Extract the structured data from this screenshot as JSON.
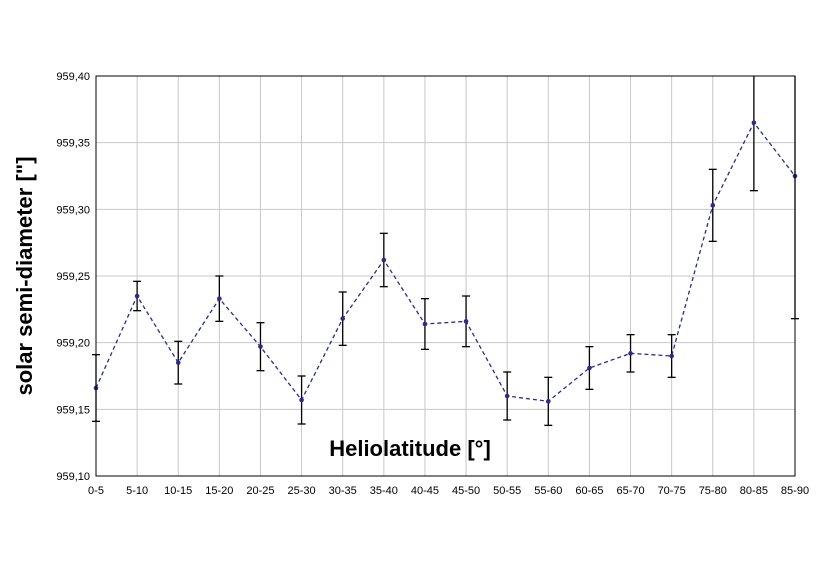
{
  "chart_data": {
    "type": "line",
    "title": "",
    "xlabel": "Heliolatitude [°]",
    "ylabel": "solar semi-diameter [\"]",
    "categories": [
      "0-5",
      "5-10",
      "10-15",
      "15-20",
      "20-25",
      "25-30",
      "30-35",
      "35-40",
      "40-45",
      "45-50",
      "50-55",
      "55-60",
      "60-65",
      "65-70",
      "70-75",
      "75-80",
      "80-85",
      "85-90"
    ],
    "series": [
      {
        "values": [
          959.166,
          959.235,
          959.185,
          959.233,
          959.197,
          959.157,
          959.218,
          959.262,
          959.214,
          959.216,
          959.16,
          959.156,
          959.181,
          959.192,
          959.19,
          959.303,
          959.365,
          959.325
        ],
        "errors": [
          0.025,
          0.011,
          0.016,
          0.017,
          0.018,
          0.018,
          0.02,
          0.02,
          0.019,
          0.019,
          0.018,
          0.018,
          0.016,
          0.014,
          0.016,
          0.027,
          0.051,
          0.107
        ],
        "color": "#2b2b8c",
        "line_style": "dashed"
      }
    ],
    "ylim": [
      959.1,
      959.4
    ],
    "yticks": [
      "959,10",
      "959,15",
      "959,20",
      "959,25",
      "959,30",
      "959,35",
      "959,40"
    ],
    "grid": true,
    "legend": "none"
  }
}
